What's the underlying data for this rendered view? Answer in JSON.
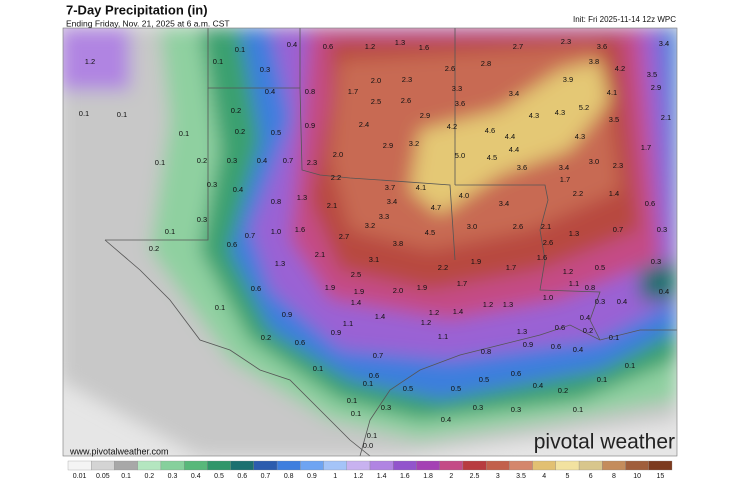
{
  "header": {
    "title": "7-Day Precipitation (in)",
    "subtitle": "Ending Friday, Nov. 21, 2025 at 6 a.m. CST",
    "init": "Init: Fri 2025-11-14 12z WPC"
  },
  "map": {
    "labels": [
      "1.2",
      "0.1",
      "0.1",
      "0.4",
      "0.6",
      "1.2",
      "1.3",
      "1.6",
      "2.7",
      "2.3",
      "3.6",
      "3.4",
      "0.3",
      "2.6",
      "2.8",
      "3.8",
      "4.2",
      "3.5",
      "0.4",
      "0.8",
      "1.7",
      "2.0",
      "2.3",
      "3.3",
      "3.4",
      "3.9",
      "2.9",
      "0.1",
      "0.1",
      "0.2",
      "0.9",
      "2.5",
      "2.6",
      "3.6",
      "5.2",
      "4.1",
      "0.1",
      "0.2",
      "0.5",
      "2.4",
      "2.9",
      "4.6",
      "4.3",
      "4.3",
      "3.5",
      "2.1",
      "4.2",
      "4.4",
      "4.3",
      "0.2",
      "0.3",
      "0.4",
      "0.7",
      "2.3",
      "2.0",
      "2.9",
      "3.2",
      "5.0",
      "4.5",
      "4.4",
      "3.0",
      "2.3",
      "1.7",
      "0.1",
      "0.3",
      "0.4",
      "2.2",
      "3.7",
      "4.1",
      "3.6",
      "3.4",
      "1.7",
      "0.8",
      "1.3",
      "2.1",
      "3.4",
      "4.0",
      "4.7",
      "3.4",
      "2.2",
      "1.4",
      "0.6",
      "0.3",
      "1.0",
      "1.6",
      "3.3",
      "3.2",
      "3.0",
      "2.6",
      "2.1",
      "1.3",
      "0.7",
      "0.3",
      "0.1",
      "0.6",
      "0.7",
      "2.7",
      "3.8",
      "4.5",
      "2.6",
      "0.2",
      "2.1",
      "3.1",
      "2.2",
      "1.9",
      "1.7",
      "1.6",
      "1.2",
      "0.5",
      "0.3",
      "1.3",
      "2.5",
      "1.7",
      "0.8",
      "0.6",
      "1.9",
      "1.9",
      "2.0",
      "1.9",
      "1.1",
      "0.4",
      "0.1",
      "0.9",
      "1.4",
      "1.4",
      "1.2",
      "1.2",
      "1.3",
      "1.0",
      "0.3",
      "0.4",
      "1.1",
      "1.2",
      "1.4",
      "1.3",
      "0.6",
      "0.4",
      "0.2",
      "0.6",
      "0.9",
      "1.1",
      "0.6",
      "0.2",
      "0.1",
      "0.7",
      "0.8",
      "0.9",
      "0.4",
      "0.1",
      "0.6",
      "0.6",
      "0.1",
      "0.1",
      "0.1",
      "0.5",
      "0.5",
      "0.5",
      "0.4",
      "0.2",
      "0.1",
      "0.3",
      "0.3",
      "0.3",
      "0.1",
      "0.1",
      "0.4",
      "0.0",
      "0.1"
    ]
  },
  "footer": {
    "website": "www.pivotalweather.com",
    "brand": "pivotal weather"
  },
  "colorbar": {
    "labels": [
      "0.01",
      "0.05",
      "0.1",
      "0.2",
      "0.3",
      "0.4",
      "0.5",
      "0.6",
      "0.7",
      "0.8",
      "0.9",
      "1",
      "1.2",
      "1.4",
      "1.6",
      "1.8",
      "2",
      "2.5",
      "3",
      "3.5",
      "4",
      "5",
      "6",
      "8",
      "10",
      "15"
    ],
    "colors": [
      "#f4f4f4",
      "#d4d4d4",
      "#a8a8a8",
      "#b4e6c0",
      "#86d09c",
      "#58b87a",
      "#30966a",
      "#1c7070",
      "#2c5cae",
      "#3e7ede",
      "#6ea4f2",
      "#a4c4f8",
      "#c8b2f0",
      "#b084e2",
      "#9254cc",
      "#a442b4",
      "#c44c86",
      "#b83c40",
      "#c2604c",
      "#d4866c",
      "#e2c072",
      "#f2e2a0",
      "#d8c68c",
      "#c48c5c",
      "#a05e3c",
      "#7c3a1e"
    ]
  }
}
